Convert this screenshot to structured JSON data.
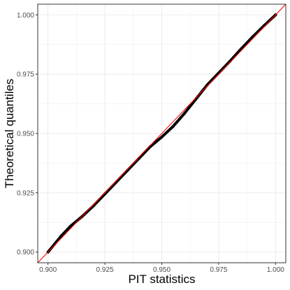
{
  "chart_data": {
    "type": "scatter",
    "title": "",
    "xlabel": "PIT statistics",
    "ylabel": "Theoretical quantiles",
    "xlim": [
      0.8955,
      1.0045
    ],
    "ylim": [
      0.8955,
      1.0045
    ],
    "x_ticks": [
      "0.900",
      "0.925",
      "0.950",
      "0.975",
      "1.000"
    ],
    "y_ticks": [
      "0.900",
      "0.925",
      "0.950",
      "0.975",
      "1.000"
    ],
    "x_tick_values": [
      0.9,
      0.925,
      0.95,
      0.975,
      1.0
    ],
    "y_tick_values": [
      0.9,
      0.925,
      0.95,
      0.975,
      1.0
    ],
    "grid": true,
    "legend": "none",
    "series": [
      {
        "x": [
          0.9,
          0.903,
          0.906,
          0.91,
          0.915,
          0.92,
          0.925,
          0.93,
          0.935,
          0.94,
          0.945,
          0.95,
          0.955,
          0.96,
          0.965,
          0.97,
          0.975,
          0.98,
          0.985,
          0.99,
          0.995,
          1.0
        ],
        "y": [
          0.9,
          0.9035,
          0.907,
          0.911,
          0.915,
          0.9195,
          0.9245,
          0.9295,
          0.9345,
          0.9395,
          0.9445,
          0.9485,
          0.953,
          0.9585,
          0.9645,
          0.9705,
          0.9755,
          0.9805,
          0.9858,
          0.9908,
          0.9955,
          1.0
        ],
        "color": "#000000"
      }
    ],
    "reference_line": {
      "slope": 1,
      "intercept": 0,
      "color": "#ff0000"
    }
  }
}
